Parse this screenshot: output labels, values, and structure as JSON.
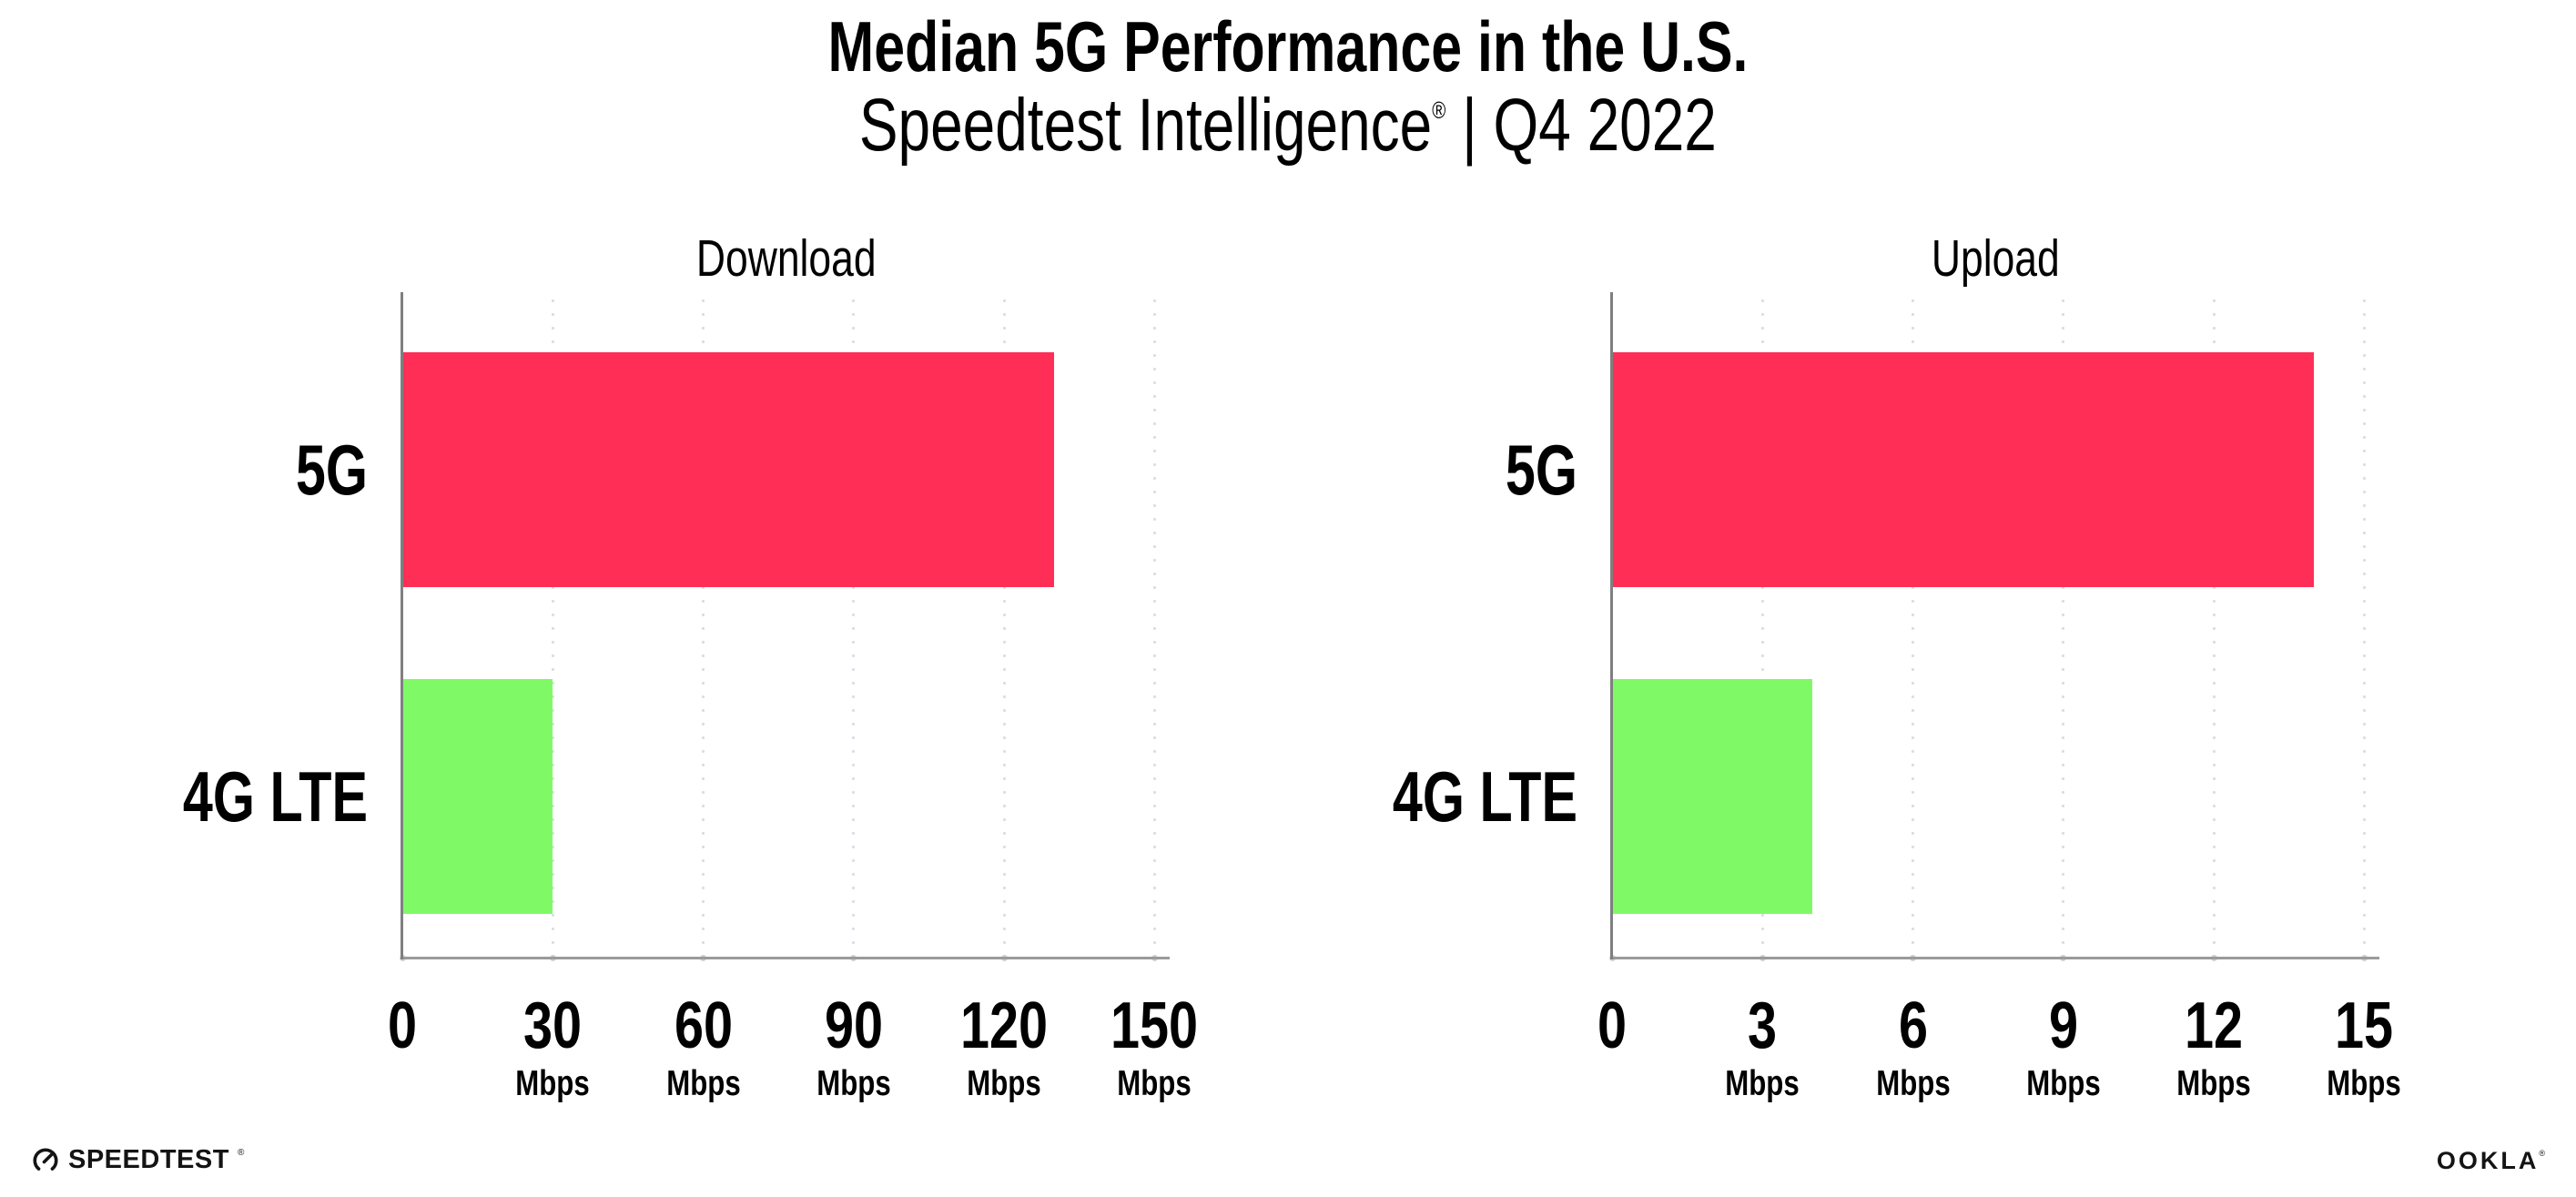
{
  "header": {
    "title": "Median 5G Performance in the U.S.",
    "subtitle_brand": "Speedtest Intelligence",
    "subtitle_reg": "®",
    "subtitle_rest": " | Q4 2022"
  },
  "footer": {
    "speedtest_label": "SPEEDTEST",
    "speedtest_tm": "®",
    "speedtest_icon": "gauge-icon",
    "ookla_label": "OOKLA",
    "ookla_reg": "®"
  },
  "colors": {
    "bar_5g": "#ff2e56",
    "bar_4g": "#7ffa66",
    "gridline_dot": "#dcdce8",
    "axis_line": "#7f7f7f",
    "baseline": "#9b9b9b",
    "tick_dot": "#cfcfda",
    "text": "#000000",
    "logo": "#141414"
  },
  "chart_data": {
    "type": "bar",
    "orientation": "horizontal",
    "title": "Median 5G Performance in the U.S.",
    "subtitle": "Speedtest Intelligence® | Q4 2022",
    "categories": [
      "5G",
      "4G LTE"
    ],
    "category_colors": [
      "#ff2e56",
      "#7ffa66"
    ],
    "unit": "Mbps",
    "grid": "vertical-dotted",
    "legend": "none",
    "charts": [
      {
        "title": "Download",
        "values": [
          130,
          30
        ],
        "ticks": [
          0,
          30,
          60,
          90,
          120,
          150
        ],
        "tick_unit": "Mbps",
        "xlim": [
          0,
          153
        ]
      },
      {
        "title": "Upload",
        "values": [
          14,
          4
        ],
        "ticks": [
          0,
          3,
          6,
          9,
          12,
          15
        ],
        "tick_unit": "Mbps",
        "xlim": [
          0,
          15.3
        ]
      }
    ]
  }
}
